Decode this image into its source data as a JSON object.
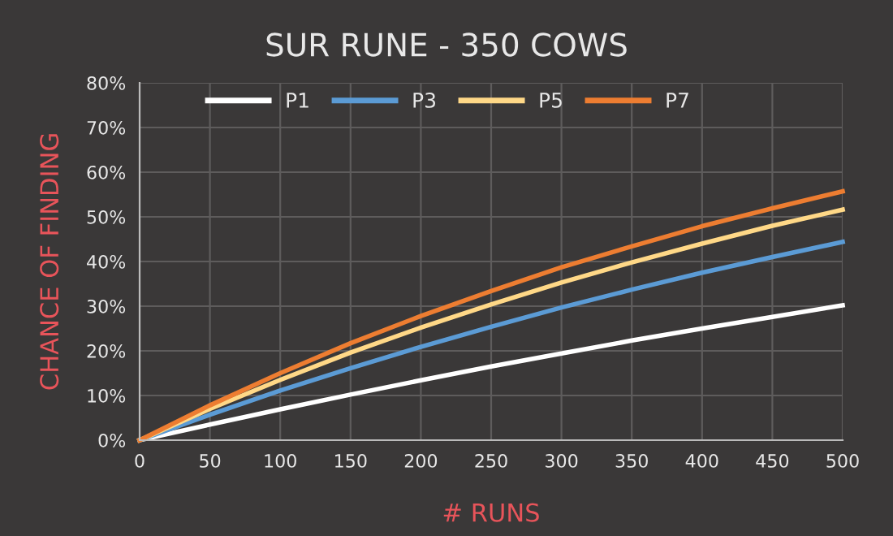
{
  "chart_data": {
    "type": "line",
    "title": "SUR RUNE - 350 COWS",
    "xlabel": "# RUNS",
    "ylabel": "CHANCE OF FINDING",
    "x": [
      0,
      50,
      100,
      150,
      200,
      250,
      300,
      350,
      400,
      450,
      500
    ],
    "series": [
      {
        "name": "P1",
        "color": "#ffffff",
        "values": [
          0,
          3.5,
          6.9,
          10.2,
          13.4,
          16.5,
          19.4,
          22.3,
          25.0,
          27.6,
          30.2
        ]
      },
      {
        "name": "P3",
        "color": "#5b9bd5",
        "values": [
          0,
          5.7,
          11.1,
          16.1,
          20.9,
          25.4,
          29.7,
          33.7,
          37.5,
          41.0,
          44.4
        ]
      },
      {
        "name": "P5",
        "color": "#ffd887",
        "values": [
          0,
          7.0,
          13.5,
          19.6,
          25.2,
          30.4,
          35.3,
          39.8,
          44.0,
          48.0,
          51.6
        ]
      },
      {
        "name": "P7",
        "color": "#ed7d31",
        "values": [
          0,
          7.8,
          15.0,
          21.7,
          27.8,
          33.4,
          38.7,
          43.4,
          47.9,
          51.9,
          55.7
        ]
      }
    ],
    "xlim": [
      0,
      500
    ],
    "xticks": [
      0,
      50,
      100,
      150,
      200,
      250,
      300,
      350,
      400,
      450,
      500
    ],
    "ylim": [
      0,
      80
    ],
    "yticks": [
      {
        "value": 0,
        "label": "0%"
      },
      {
        "value": 10,
        "label": "10%"
      },
      {
        "value": 20,
        "label": "20%"
      },
      {
        "value": 30,
        "label": "30%"
      },
      {
        "value": 40,
        "label": "40%"
      },
      {
        "value": 50,
        "label": "50%"
      },
      {
        "value": 60,
        "label": "60%"
      },
      {
        "value": 70,
        "label": "70%"
      },
      {
        "value": 80,
        "label": "80%"
      }
    ],
    "grid": true,
    "legend": "top",
    "marker": "none",
    "line_style": "solid"
  }
}
